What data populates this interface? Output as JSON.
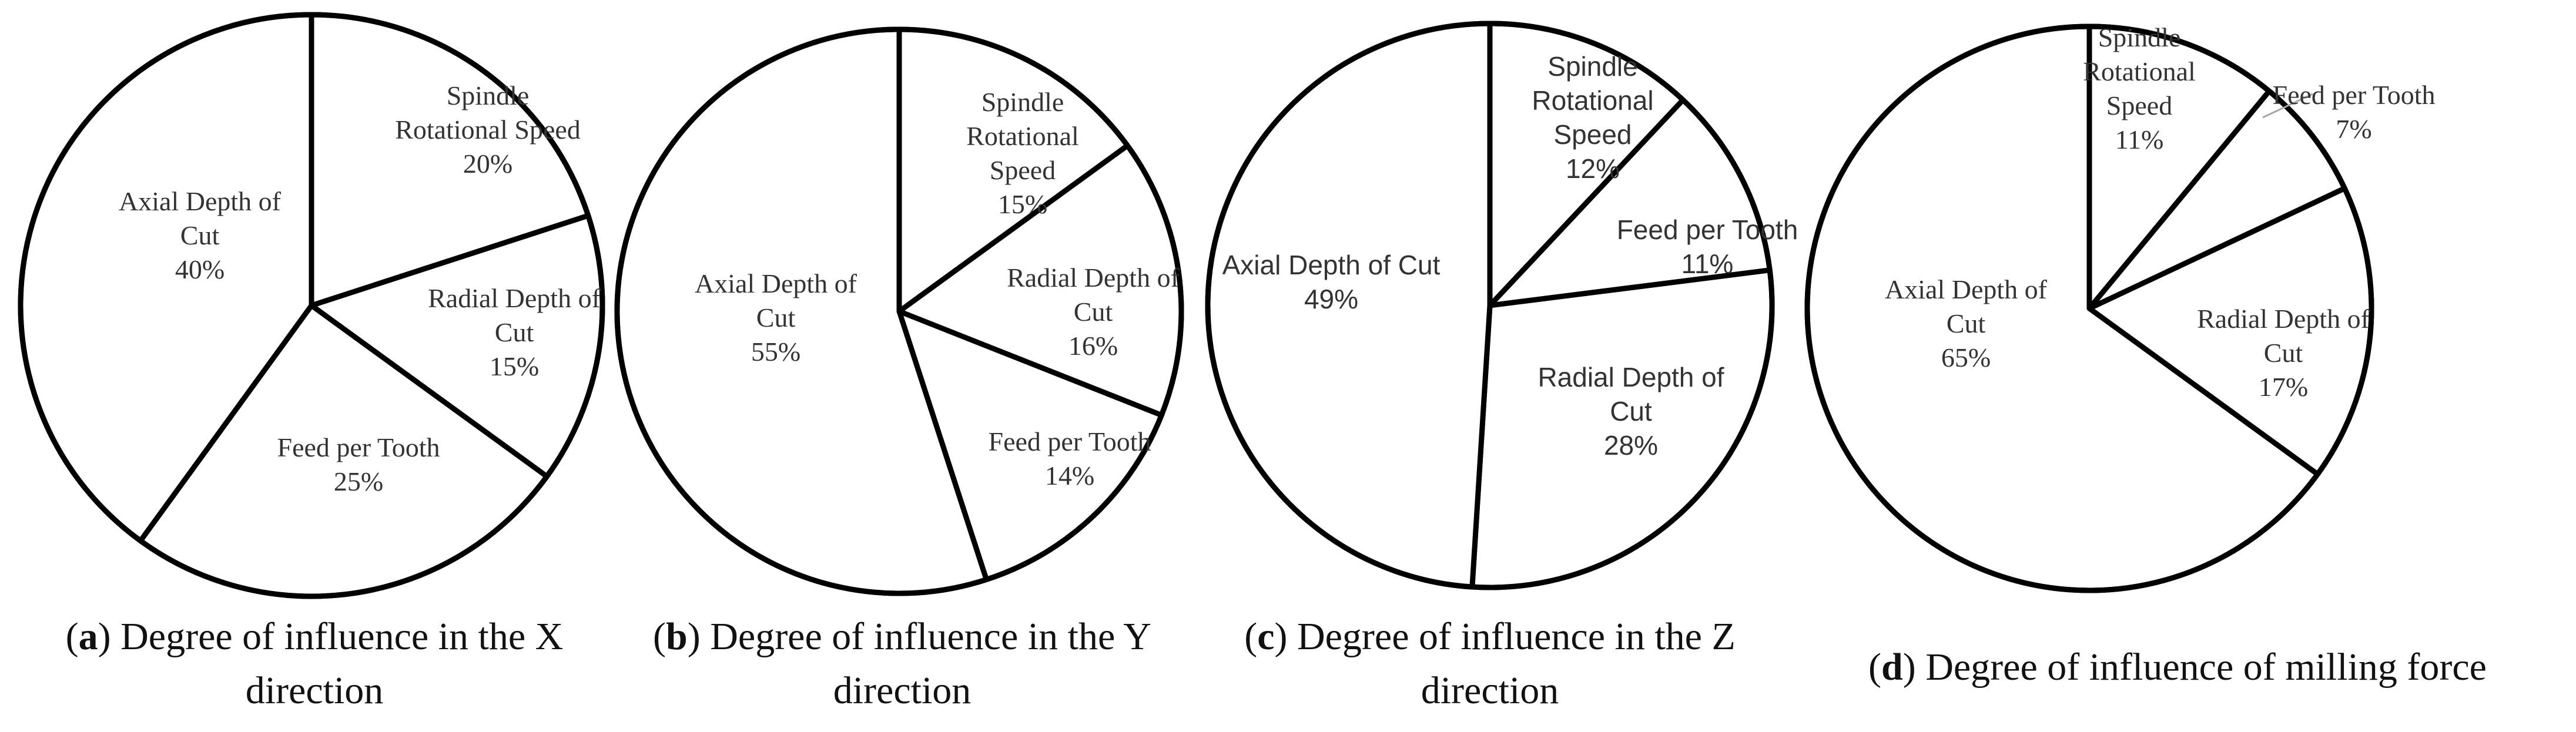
{
  "chart_data": [
    {
      "type": "pie",
      "panel": "a",
      "caption": "Degree of influence in the X direction",
      "slices": [
        {
          "label": [
            "Spindle",
            "Rotational Speed"
          ],
          "value": 20,
          "value_label": "20%"
        },
        {
          "label": [
            "Radial Depth of",
            "Cut"
          ],
          "value": 15,
          "value_label": "15%"
        },
        {
          "label": [
            "Feed per Tooth"
          ],
          "value": 25,
          "value_label": "25%"
        },
        {
          "label": [
            "Axial Depth of",
            "Cut"
          ],
          "value": 40,
          "value_label": "40%"
        }
      ]
    },
    {
      "type": "pie",
      "panel": "b",
      "caption": "Degree of influence in the Y direction",
      "slices": [
        {
          "label": [
            "Spindle",
            "Rotational",
            "Speed"
          ],
          "value": 15,
          "value_label": "15%"
        },
        {
          "label": [
            "Radial Depth of",
            "Cut"
          ],
          "value": 16,
          "value_label": "16%"
        },
        {
          "label": [
            "Feed per Tooth"
          ],
          "value": 14,
          "value_label": "14%"
        },
        {
          "label": [
            "Axial Depth of",
            "Cut"
          ],
          "value": 55,
          "value_label": "55%"
        }
      ]
    },
    {
      "type": "pie",
      "panel": "c",
      "caption": "Degree of influence in the Z direction",
      "slices": [
        {
          "label": [
            "Spindle",
            "Rotational",
            "Speed"
          ],
          "value": 12,
          "value_label": "12%"
        },
        {
          "label": [
            "Feed per Tooth"
          ],
          "value": 11,
          "value_label": "11%"
        },
        {
          "label": [
            "Radial Depth of",
            "Cut"
          ],
          "value": 28,
          "value_label": "28%"
        },
        {
          "label": [
            "Axial Depth of Cut"
          ],
          "value": 49,
          "value_label": "49%"
        }
      ]
    },
    {
      "type": "pie",
      "panel": "d",
      "caption": "Degree of influence of milling force",
      "slices": [
        {
          "label": [
            "Spindle",
            "Rotational",
            "Speed"
          ],
          "value": 11,
          "value_label": "11%"
        },
        {
          "label": [
            "Feed per Tooth"
          ],
          "value": 7,
          "value_label": "7%"
        },
        {
          "label": [
            "Radial Depth of",
            "Cut"
          ],
          "value": 17,
          "value_label": "17%"
        },
        {
          "label": [
            "Axial Depth of",
            "Cut"
          ],
          "value": 65,
          "value_label": "65%"
        }
      ]
    }
  ]
}
